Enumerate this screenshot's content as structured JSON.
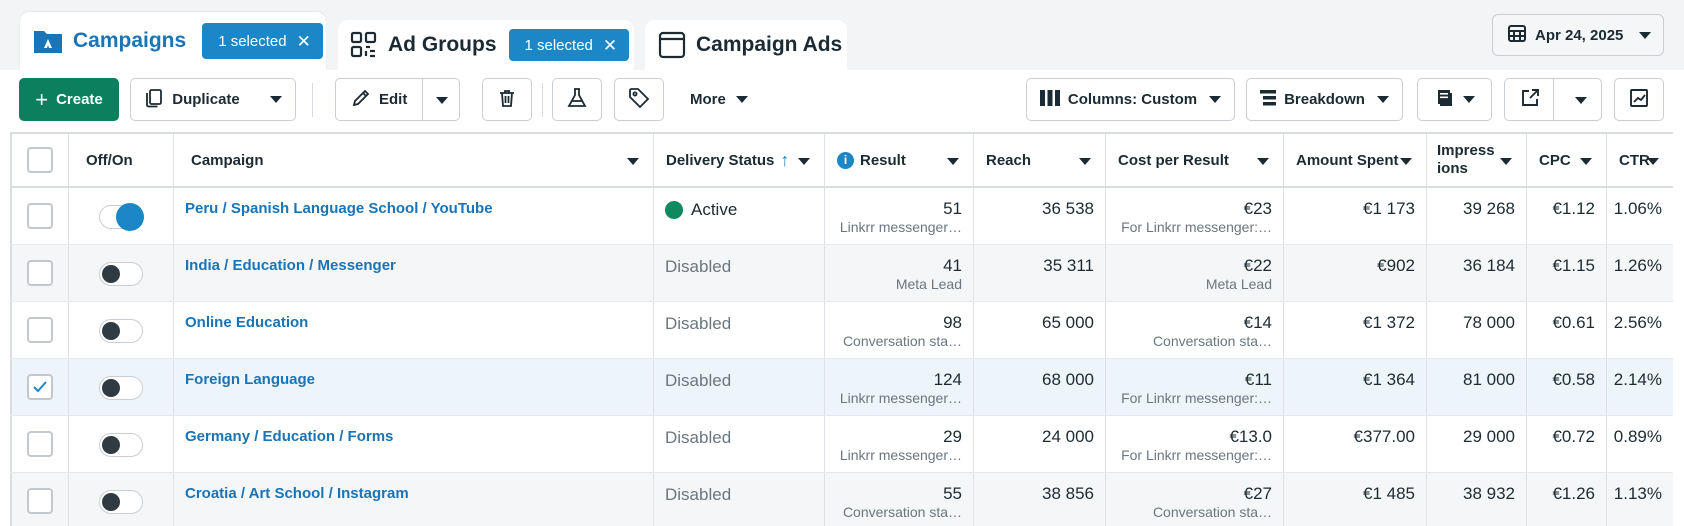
{
  "tabs": {
    "campaigns": {
      "label": "Campaigns",
      "selected": "1 selected"
    },
    "ad_groups": {
      "label": "Ad Groups",
      "selected": "1 selected"
    },
    "campaign_ads": {
      "label": "Campaign Ads"
    }
  },
  "date": "Apr 24, 2025",
  "toolbar": {
    "create": "Create",
    "duplicate": "Duplicate",
    "edit": "Edit",
    "more": "More",
    "columns": "Columns: Custom",
    "breakdown": "Breakdown"
  },
  "columns": {
    "off_on": "Off/On",
    "campaign": "Campaign",
    "delivery": "Delivery Status",
    "result": "Result",
    "reach": "Reach",
    "cpr": "Cost per Result",
    "spent": "Amount Spent",
    "impressions": "Impress ions",
    "cpc": "CPC",
    "ctr": "CTR"
  },
  "rows": [
    {
      "name": "Peru / Spanish Language School / YouTube",
      "on": true,
      "checked": false,
      "status": "Active",
      "result": "51",
      "result_sub": "Linkrr messenger…",
      "reach": "36 538",
      "cpr": "€23",
      "cpr_sub": "For Linkrr messenger:…",
      "spent": "€1 173",
      "impressions": "39 268",
      "cpc": "€1.12",
      "ctr": "1.06%"
    },
    {
      "name": "India / Education / Messenger",
      "on": false,
      "checked": false,
      "status": "Disabled",
      "result": "41",
      "result_sub": "Meta Lead",
      "reach": "35 311",
      "cpr": "€22",
      "cpr_sub": "Meta Lead",
      "spent": "€902",
      "impressions": "36 184",
      "cpc": "€1.15",
      "ctr": "1.26%"
    },
    {
      "name": "Online Education",
      "on": false,
      "checked": false,
      "status": "Disabled",
      "result": "98",
      "result_sub": "Conversation sta…",
      "reach": "65 000",
      "cpr": "€14",
      "cpr_sub": "Conversation sta…",
      "spent": "€1 372",
      "impressions": "78 000",
      "cpc": "€0.61",
      "ctr": "2.56%"
    },
    {
      "name": "Foreign Language",
      "on": false,
      "checked": true,
      "status": "Disabled",
      "result": "124",
      "result_sub": "Linkrr messenger…",
      "reach": "68 000",
      "cpr": "€11",
      "cpr_sub": "For Linkrr messenger:…",
      "spent": "€1 364",
      "impressions": "81 000",
      "cpc": "€0.58",
      "ctr": "2.14%"
    },
    {
      "name": "Germany / Education / Forms",
      "on": false,
      "checked": false,
      "status": "Disabled",
      "result": "29",
      "result_sub": "Linkrr messenger…",
      "reach": "24 000",
      "cpr": "€13.0",
      "cpr_sub": "For Linkrr messenger:…",
      "spent": "€377.00",
      "impressions": "29 000",
      "cpc": "€0.72",
      "ctr": "0.89%"
    },
    {
      "name": "Croatia / Art School / Instagram",
      "on": false,
      "checked": false,
      "status": "Disabled",
      "result": "55",
      "result_sub": "Conversation sta…",
      "reach": "38 856",
      "cpr": "€27",
      "cpr_sub": "Conversation sta…",
      "spent": "€1 485",
      "impressions": "38 932",
      "cpc": "€1.26",
      "ctr": "1.13%"
    }
  ]
}
